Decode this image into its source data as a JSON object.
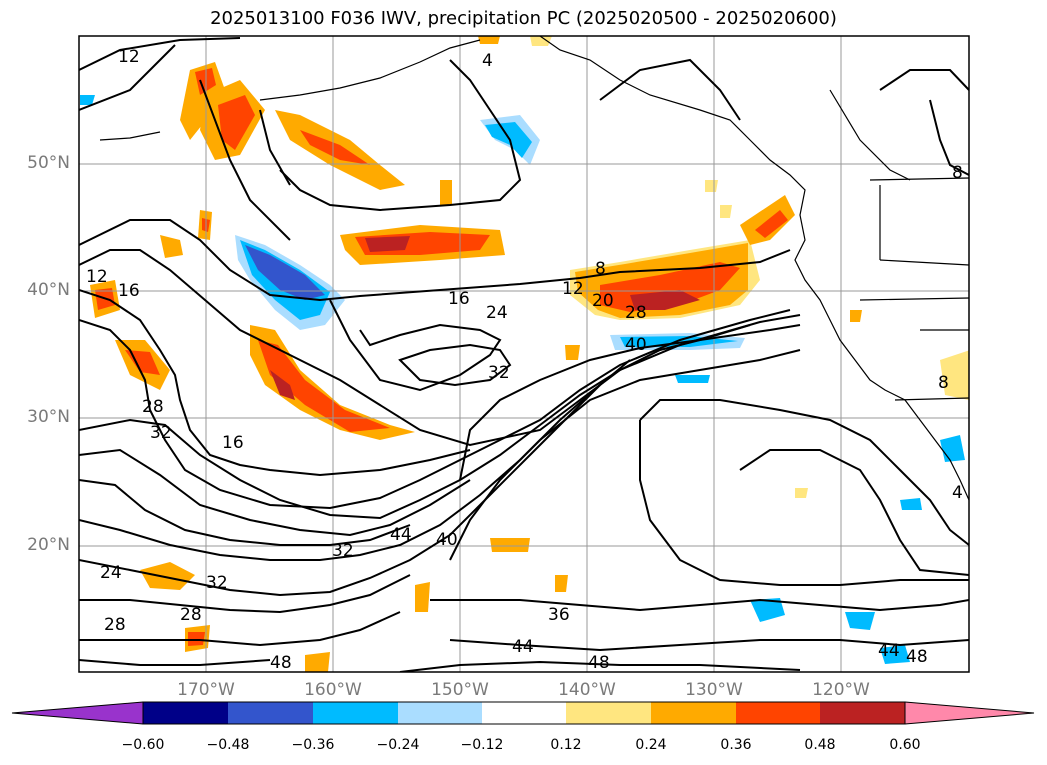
{
  "title": "2025013100 F036 IWV, precipitation PC (2025020500 - 2025020600)",
  "lat_labels": [
    "50°N",
    "40°N",
    "30°N",
    "20°N"
  ],
  "lon_labels": [
    "170°W",
    "160°W",
    "150°W",
    "140°W",
    "130°W",
    "120°W"
  ],
  "contour_labels": [
    {
      "text": "12",
      "id": "c12-nw"
    },
    {
      "text": "4",
      "id": "c4-n"
    },
    {
      "text": "8",
      "id": "c8-ne"
    },
    {
      "text": "12",
      "id": "c12-w"
    },
    {
      "text": "16",
      "id": "c16-w"
    },
    {
      "text": "8",
      "id": "c8-c"
    },
    {
      "text": "12",
      "id": "c12-c"
    },
    {
      "text": "20",
      "id": "c20-c"
    },
    {
      "text": "16",
      "id": "c16-c"
    },
    {
      "text": "24",
      "id": "c24-c"
    },
    {
      "text": "28",
      "id": "c28-c"
    },
    {
      "text": "40",
      "id": "c40-c"
    },
    {
      "text": "32",
      "id": "c32-c"
    },
    {
      "text": "28",
      "id": "c28-w"
    },
    {
      "text": "32",
      "id": "c32-w"
    },
    {
      "text": "16",
      "id": "c16-sw"
    },
    {
      "text": "8",
      "id": "c8-e"
    },
    {
      "text": "4",
      "id": "c4-e"
    },
    {
      "text": "44",
      "id": "c44-sc"
    },
    {
      "text": "40",
      "id": "c40-sc"
    },
    {
      "text": "32",
      "id": "c32-sc"
    },
    {
      "text": "24",
      "id": "c24-sw"
    },
    {
      "text": "32",
      "id": "c32-sw"
    },
    {
      "text": "28",
      "id": "c28-sw"
    },
    {
      "text": "28",
      "id": "c28-sw2"
    },
    {
      "text": "36",
      "id": "c36-s"
    },
    {
      "text": "44",
      "id": "c44-s"
    },
    {
      "text": "48",
      "id": "c48-s"
    },
    {
      "text": "48",
      "id": "c48-sw"
    },
    {
      "text": "44",
      "id": "c44-se"
    },
    {
      "text": "48",
      "id": "c48-se"
    }
  ],
  "colorbar": {
    "colors": [
      "#9933cc",
      "#000088",
      "#3355cc",
      "#00bbff",
      "#aaddff",
      "#ffffff",
      "#ffe680",
      "#ffaa00",
      "#ff4400",
      "#bb2222",
      "#ff88aa"
    ],
    "ticks": [
      "−0.60",
      "−0.48",
      "−0.36",
      "−0.24",
      "−0.12",
      "0.12",
      "0.24",
      "0.36",
      "0.48",
      "0.60"
    ]
  }
}
